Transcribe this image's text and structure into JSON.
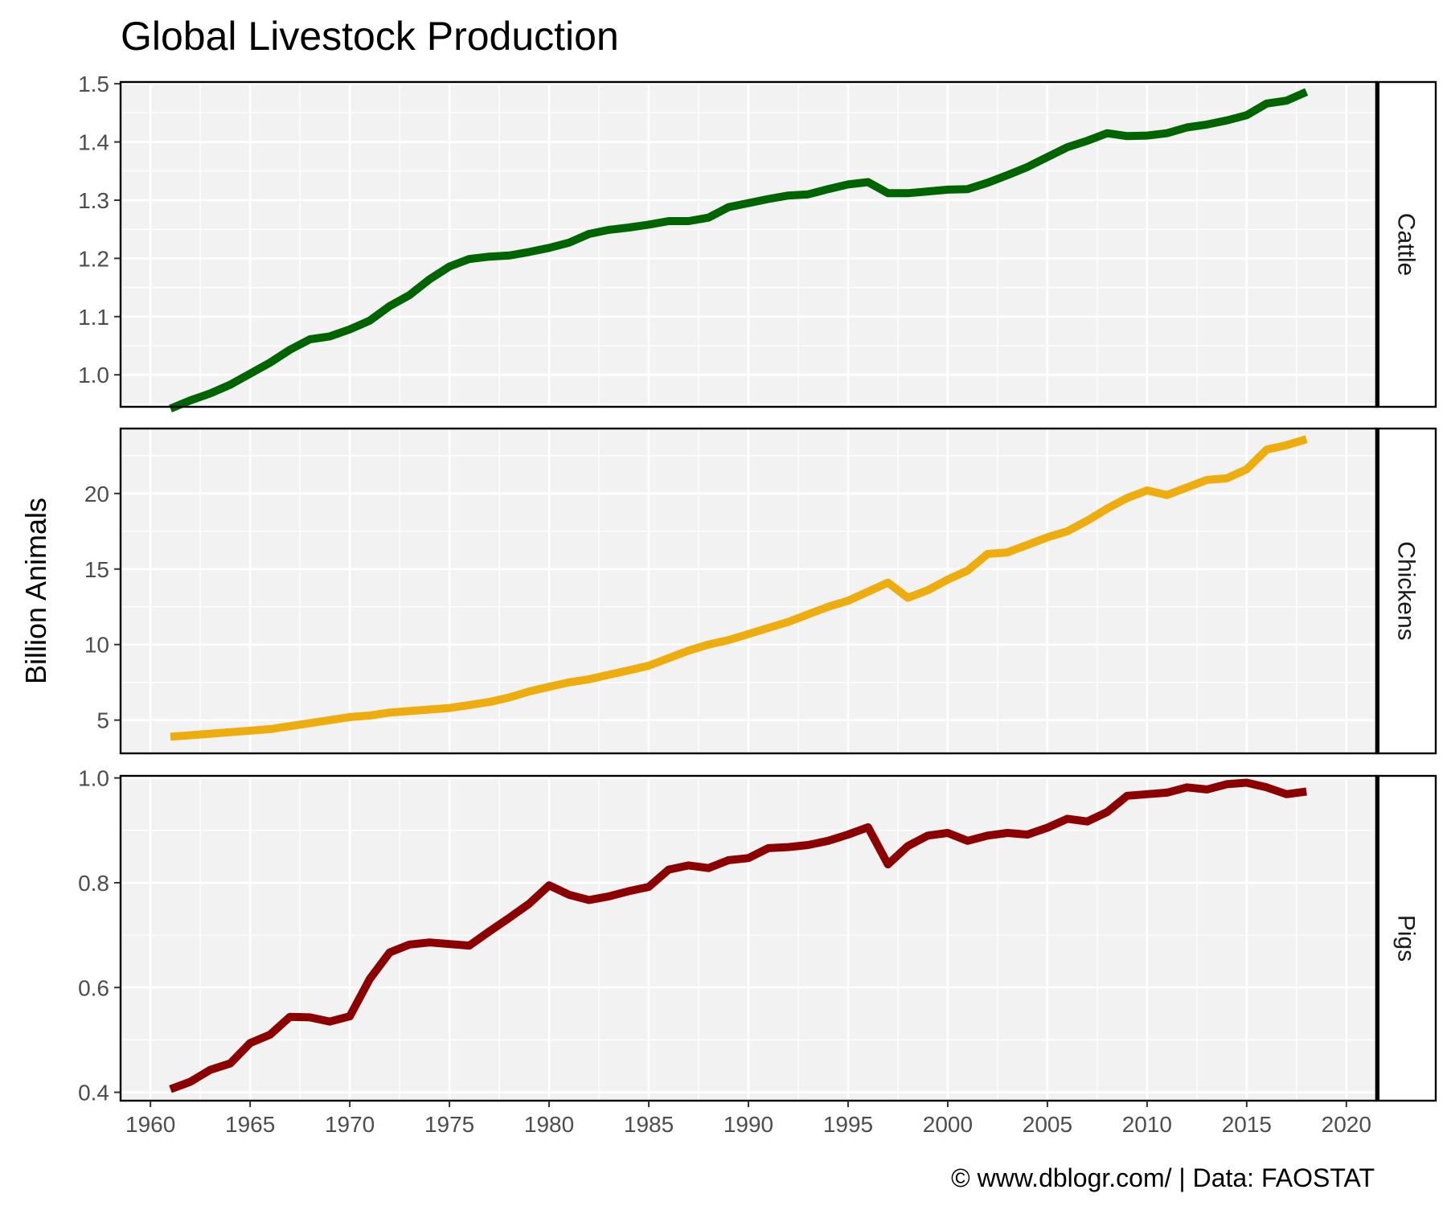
{
  "chart_data": {
    "type": "line",
    "title": "Global Livestock Production",
    "ylabel": "Billion Animals",
    "xlabel": "",
    "caption": "© www.dblogr.com/ | Data: FAOSTAT",
    "grid": true,
    "facet_layout": "rows",
    "xlim": [
      1958.5,
      2021.5
    ],
    "x_ticks": [
      "1960",
      "1965",
      "1970",
      "1975",
      "1980",
      "1985",
      "1990",
      "1995",
      "2000",
      "2005",
      "2010",
      "2015",
      "2020"
    ],
    "x": [
      1961,
      1962,
      1963,
      1964,
      1965,
      1966,
      1967,
      1968,
      1969,
      1970,
      1971,
      1972,
      1973,
      1974,
      1975,
      1976,
      1977,
      1978,
      1979,
      1980,
      1981,
      1982,
      1983,
      1984,
      1985,
      1986,
      1987,
      1988,
      1989,
      1990,
      1991,
      1992,
      1993,
      1994,
      1995,
      1996,
      1997,
      1998,
      1999,
      2000,
      2001,
      2002,
      2003,
      2004,
      2005,
      2006,
      2007,
      2008,
      2009,
      2010,
      2011,
      2012,
      2013,
      2014,
      2015,
      2016,
      2017,
      2018
    ],
    "series": [
      {
        "name": "Cattle",
        "color": "#006400",
        "ylim": [
          0.945,
          1.503
        ],
        "y_ticks": [
          "1.0",
          "1.1",
          "1.2",
          "1.3",
          "1.4",
          "1.5"
        ],
        "values": [
          0.942,
          0.956,
          0.968,
          0.983,
          1.002,
          1.021,
          1.043,
          1.061,
          1.066,
          1.078,
          1.093,
          1.118,
          1.137,
          1.164,
          1.186,
          1.199,
          1.203,
          1.205,
          1.211,
          1.218,
          1.227,
          1.242,
          1.249,
          1.253,
          1.258,
          1.264,
          1.264,
          1.27,
          1.288,
          1.295,
          1.302,
          1.308,
          1.31,
          1.319,
          1.327,
          1.331,
          1.312,
          1.312,
          1.315,
          1.318,
          1.319,
          1.33,
          1.343,
          1.357,
          1.374,
          1.391,
          1.402,
          1.415,
          1.41,
          1.411,
          1.415,
          1.425,
          1.43,
          1.437,
          1.446,
          1.466,
          1.471,
          1.486
        ]
      },
      {
        "name": "Chickens",
        "color": "#EEAD0E",
        "ylim": [
          2.8,
          24.3
        ],
        "y_ticks": [
          "5",
          "10",
          "15",
          "20"
        ],
        "values": [
          3.9,
          4.0,
          4.1,
          4.2,
          4.3,
          4.4,
          4.6,
          4.8,
          5.0,
          5.2,
          5.3,
          5.5,
          5.6,
          5.7,
          5.8,
          6.0,
          6.2,
          6.5,
          6.9,
          7.2,
          7.5,
          7.7,
          8.0,
          8.3,
          8.6,
          9.1,
          9.6,
          10.0,
          10.3,
          10.7,
          11.1,
          11.5,
          12.0,
          12.5,
          12.9,
          13.5,
          14.1,
          13.1,
          13.6,
          14.3,
          14.9,
          16.0,
          16.1,
          16.6,
          17.1,
          17.5,
          18.2,
          19.0,
          19.7,
          20.2,
          19.9,
          20.4,
          20.9,
          21.0,
          21.6,
          22.9,
          23.2,
          23.6
        ]
      },
      {
        "name": "Pigs",
        "color": "#8B0000",
        "ylim": [
          0.384,
          1.004
        ],
        "y_ticks": [
          "0.4",
          "0.6",
          "0.8",
          "1.0"
        ],
        "values": [
          0.406,
          0.42,
          0.443,
          0.455,
          0.494,
          0.51,
          0.544,
          0.543,
          0.535,
          0.545,
          0.616,
          0.667,
          0.682,
          0.686,
          0.683,
          0.68,
          0.707,
          0.733,
          0.76,
          0.795,
          0.777,
          0.767,
          0.774,
          0.784,
          0.792,
          0.825,
          0.833,
          0.828,
          0.843,
          0.847,
          0.866,
          0.868,
          0.872,
          0.88,
          0.892,
          0.906,
          0.835,
          0.87,
          0.89,
          0.895,
          0.88,
          0.89,
          0.895,
          0.892,
          0.905,
          0.922,
          0.917,
          0.935,
          0.966,
          0.969,
          0.972,
          0.982,
          0.978,
          0.988,
          0.991,
          0.982,
          0.969,
          0.974
        ]
      }
    ]
  }
}
